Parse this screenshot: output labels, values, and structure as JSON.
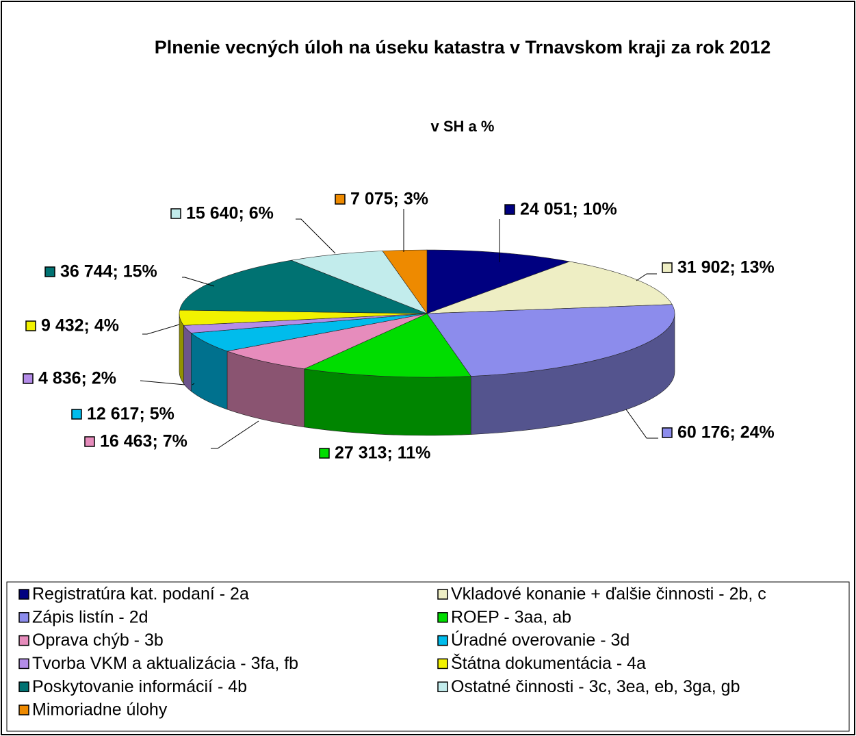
{
  "chart_data": {
    "type": "pie",
    "title": "Plnenie vecných úloh na úseku katastra v Trnavskom kraji za rok 2012",
    "subtitle": "v SH a %",
    "categories": [
      "Registratúra kat. podaní - 2a",
      "Vkladové konanie + ďalšie činnosti - 2b, c",
      "Zápis listín - 2d",
      "ROEP - 3aa, ab",
      "Oprava chýb - 3b",
      "Úradné overovanie - 3d",
      "Tvorba VKM a aktualizácia - 3fa, fb",
      "Štátna dokumentácia - 4a",
      "Poskytovanie informácií - 4b",
      "Ostatné činnosti - 3c, 3ea, eb, 3ga, gb",
      "Mimoriadne úlohy"
    ],
    "values": [
      24051,
      31902,
      60176,
      27313,
      16463,
      12617,
      4836,
      9432,
      36744,
      15640,
      7075
    ],
    "value_labels": [
      "24 051; 10%",
      "31 902; 13%",
      "60 176; 24%",
      "27 313; 11%",
      "16 463; 7%",
      "12 617; 5%",
      "4 836; 2%",
      "9 432; 4%",
      "36 744; 15%",
      "15 640; 6%",
      "7 075; 3%"
    ],
    "colors": [
      "#000080",
      "#eeeec4",
      "#8c8cec",
      "#00dd00",
      "#e68cbc",
      "#00bcec",
      "#b48ce8",
      "#f2f200",
      "#007272",
      "#c2ecec",
      "#ee8a00"
    ],
    "legend": "bottom"
  }
}
